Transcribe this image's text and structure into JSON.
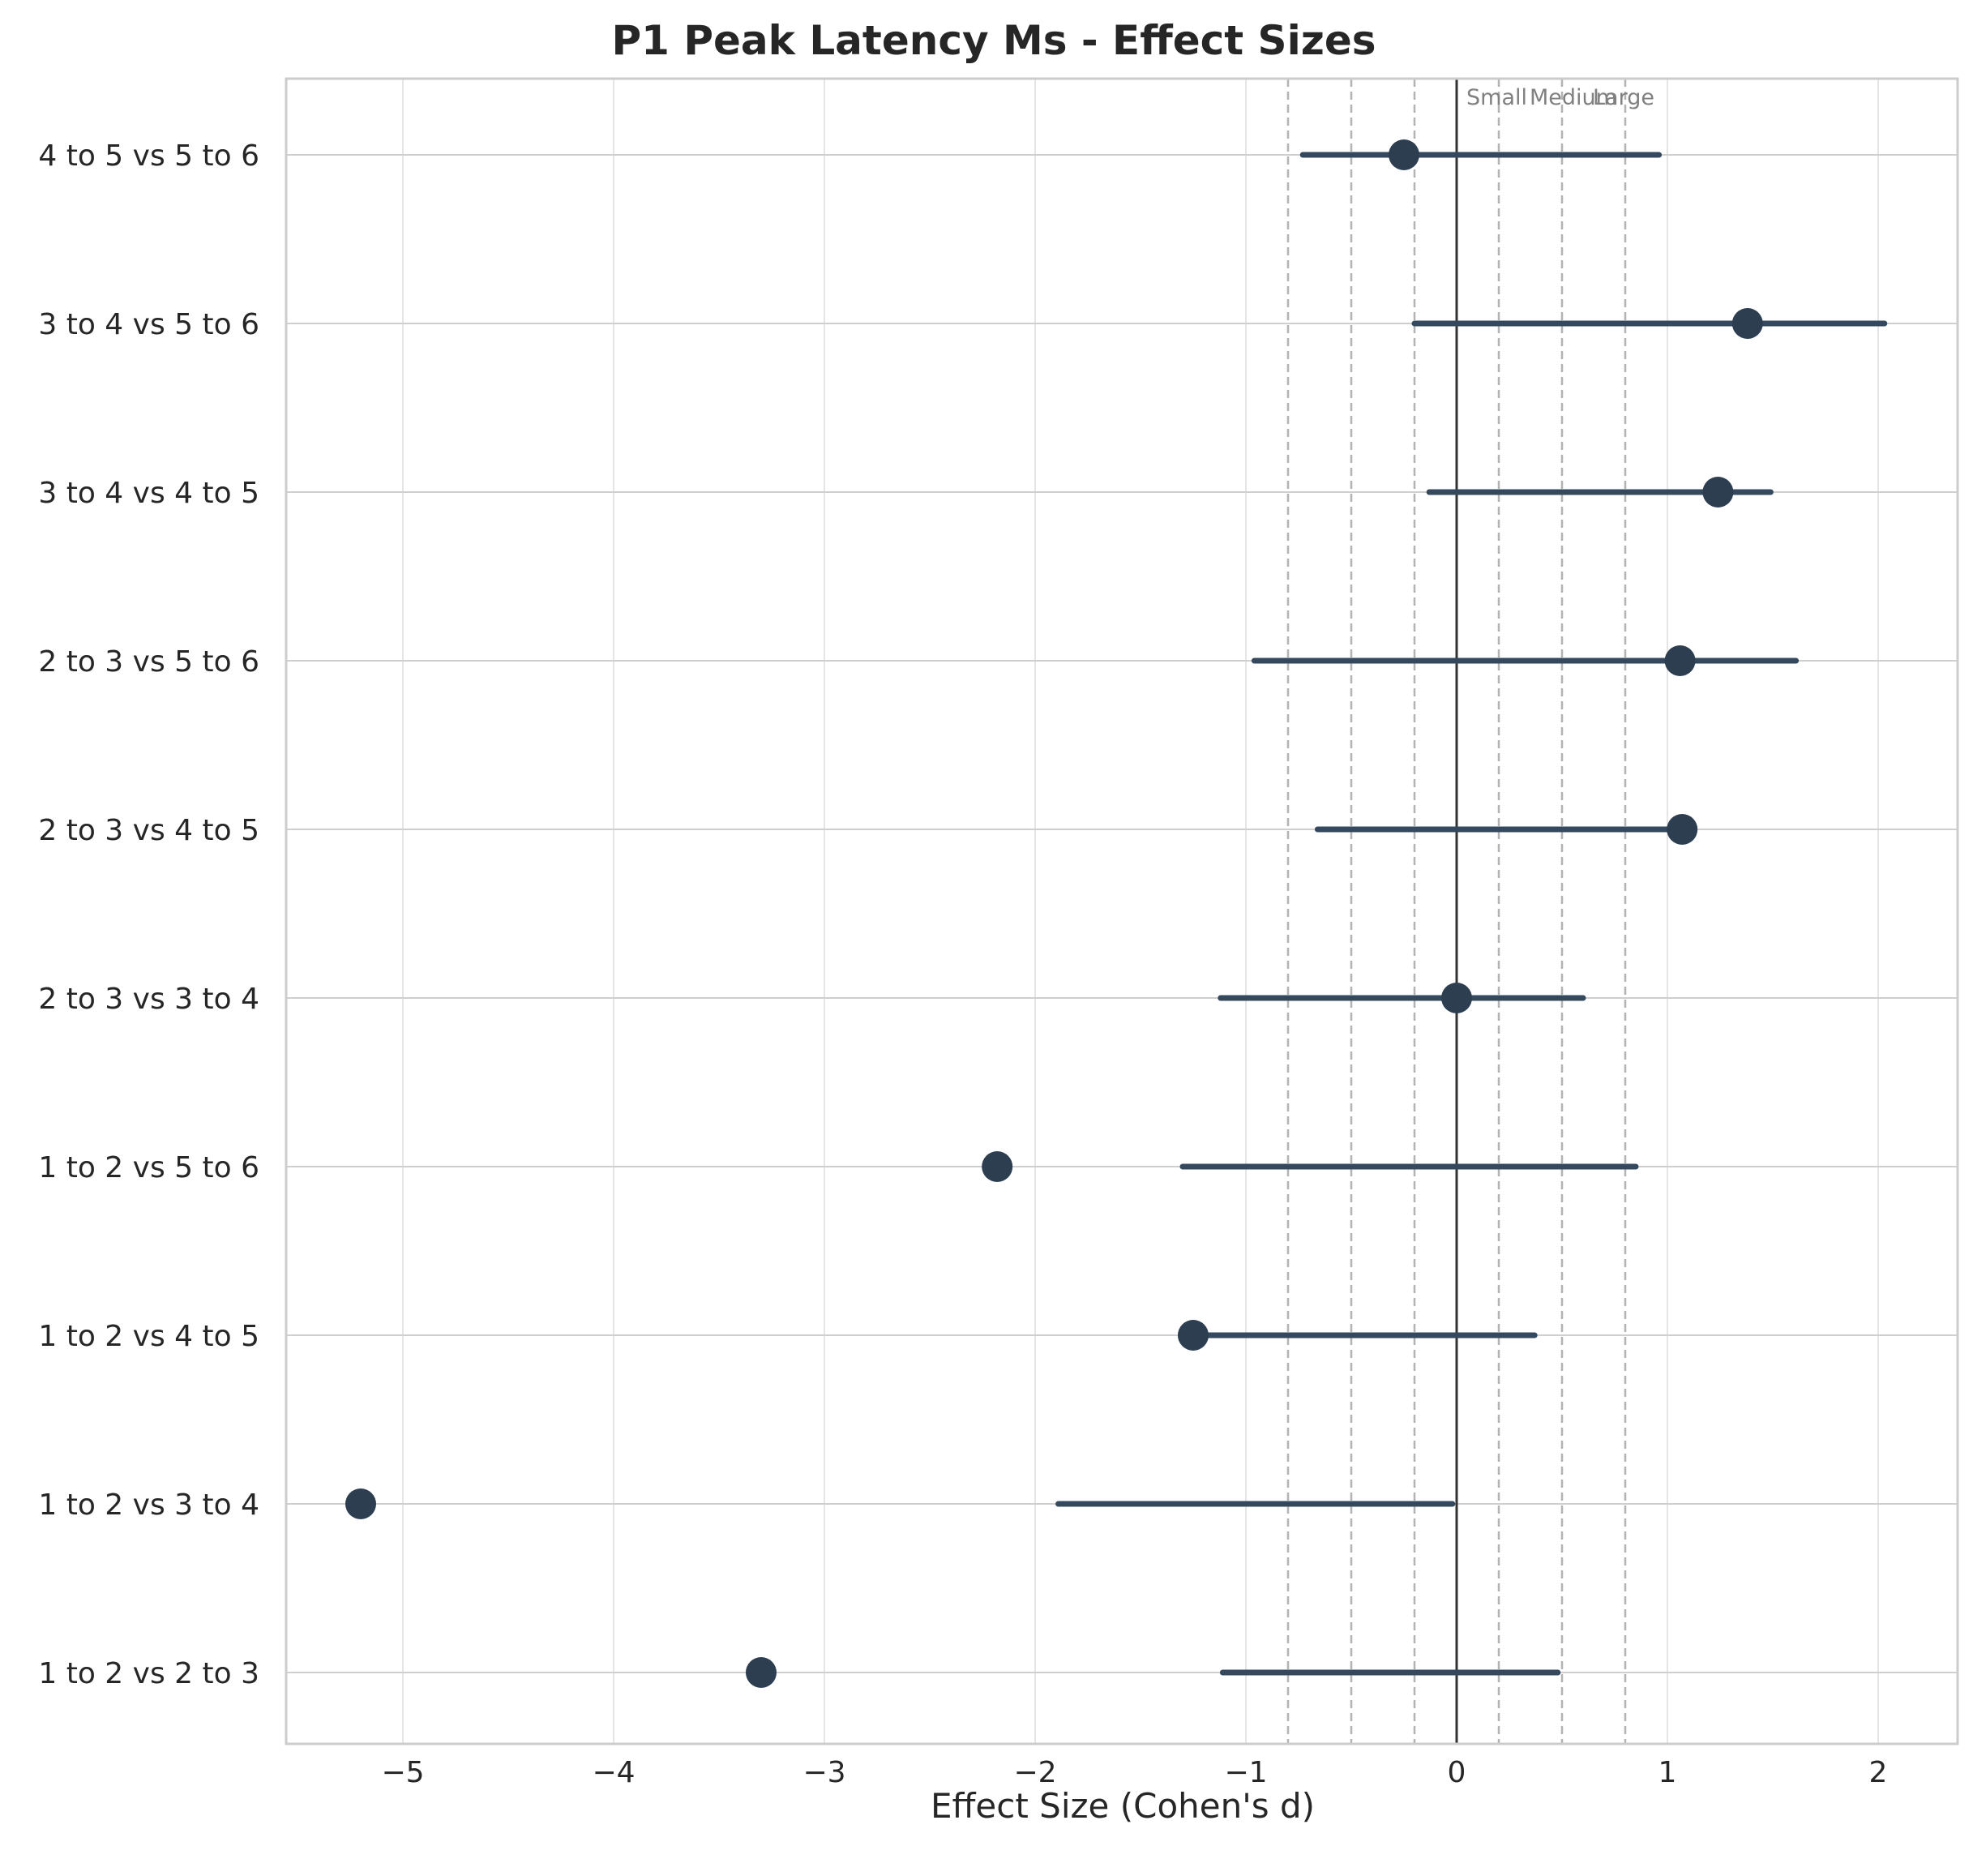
{
  "chart_data": {
    "type": "forest",
    "title": "P1 Peak Latency Ms - Effect Sizes",
    "xlabel": "Effect Size (Cohen's d)",
    "ylabel": "",
    "xlim": [
      -5.6,
      2.4
    ],
    "xticks": [
      -5,
      -4,
      -3,
      -2,
      -1,
      0,
      1,
      2
    ],
    "xtick_labels": [
      "−5",
      "−4",
      "−3",
      "−2",
      "−1",
      "0",
      "1",
      "2"
    ],
    "grid": true,
    "marker_color": "#2c3e50",
    "ci_color": "#34495e",
    "zero_line": 0,
    "threshold_lines": [
      -0.8,
      -0.5,
      -0.2,
      0.2,
      0.5,
      0.8
    ],
    "threshold_labels": [
      {
        "text": "Small",
        "x": 0.2
      },
      {
        "text": "Medium",
        "x": 0.5
      },
      {
        "text": "Large",
        "x": 0.8
      }
    ],
    "comparisons": [
      {
        "label": "1 to 2 vs 2 to 3",
        "d": -3.3,
        "ci": [
          -1.11,
          0.48
        ]
      },
      {
        "label": "1 to 2 vs 3 to 4",
        "d": -5.2,
        "ci": [
          -1.89,
          -0.02
        ]
      },
      {
        "label": "1 to 2 vs 4 to 5",
        "d": -1.25,
        "ci": [
          -1.25,
          0.37
        ]
      },
      {
        "label": "1 to 2 vs 5 to 6",
        "d": -2.18,
        "ci": [
          -1.3,
          0.85
        ]
      },
      {
        "label": "2 to 3 vs 3 to 4",
        "d": 0.0,
        "ci": [
          -1.12,
          0.6
        ]
      },
      {
        "label": "2 to 3 vs 4 to 5",
        "d": 1.07,
        "ci": [
          -0.66,
          1.07
        ]
      },
      {
        "label": "2 to 3 vs 5 to 6",
        "d": 1.06,
        "ci": [
          -0.96,
          1.61
        ]
      },
      {
        "label": "3 to 4 vs 4 to 5",
        "d": 1.24,
        "ci": [
          -0.13,
          1.49
        ]
      },
      {
        "label": "3 to 4 vs 5 to 6",
        "d": 1.38,
        "ci": [
          -0.2,
          2.03
        ]
      },
      {
        "label": "4 to 5 vs 5 to 6",
        "d": -0.25,
        "ci": [
          -0.73,
          0.96
        ]
      }
    ]
  }
}
